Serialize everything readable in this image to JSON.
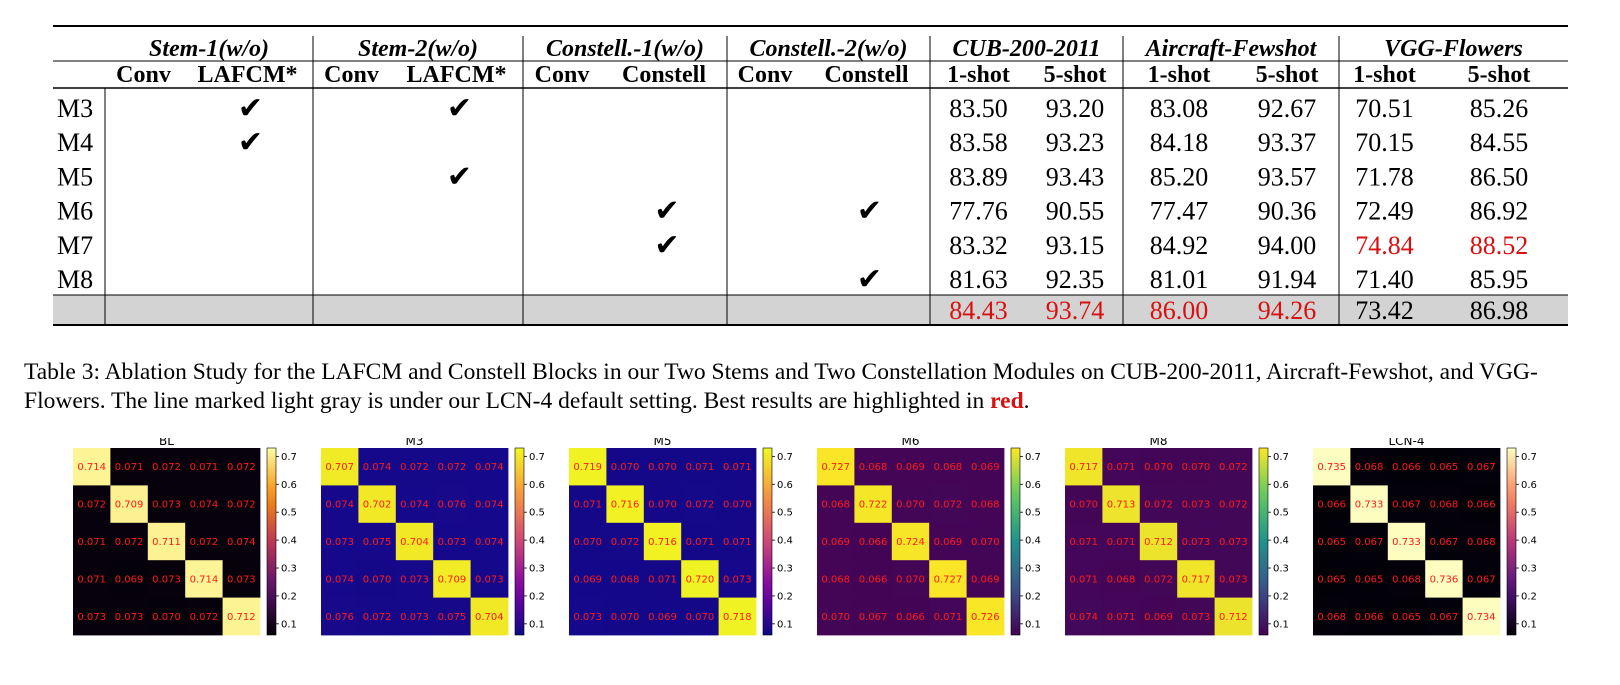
{
  "table": {
    "group_headers": [
      "Stem-1(w/o)",
      "Stem-2(w/o)",
      "Constell.-1(w/o)",
      "Constell.-2(w/o)",
      "CUB-200-2011",
      "Aircraft-Fewshot",
      "VGG-Flowers"
    ],
    "sub_headers": [
      "Conv",
      "LAFCM*",
      "Conv",
      "LAFCM*",
      "Conv",
      "Constell",
      "Conv",
      "Constell",
      "1-shot",
      "5-shot",
      "1-shot",
      "5-shot",
      "1-shot",
      "5-shot"
    ],
    "check_mark": "✔",
    "rows": [
      {
        "label": "M3",
        "checks": [
          1,
          3
        ],
        "values": [
          "83.50",
          "93.20",
          "83.08",
          "92.67",
          "70.51",
          "85.26"
        ],
        "red": []
      },
      {
        "label": "M4",
        "checks": [
          1
        ],
        "values": [
          "83.58",
          "93.23",
          "84.18",
          "93.37",
          "70.15",
          "84.55"
        ],
        "red": []
      },
      {
        "label": "M5",
        "checks": [
          3
        ],
        "values": [
          "83.89",
          "93.43",
          "85.20",
          "93.57",
          "71.78",
          "86.50"
        ],
        "red": []
      },
      {
        "label": "M6",
        "checks": [
          5,
          7
        ],
        "values": [
          "77.76",
          "90.55",
          "77.47",
          "90.36",
          "72.49",
          "86.92"
        ],
        "red": []
      },
      {
        "label": "M7",
        "checks": [
          5
        ],
        "values": [
          "83.32",
          "93.15",
          "84.92",
          "94.00",
          "74.84",
          "88.52"
        ],
        "red": [
          4,
          5
        ]
      },
      {
        "label": "M8",
        "checks": [
          7
        ],
        "values": [
          "81.63",
          "92.35",
          "81.01",
          "91.94",
          "71.40",
          "85.95"
        ],
        "red": []
      },
      {
        "label": "",
        "checks": [],
        "values": [
          "84.43",
          "93.74",
          "86.00",
          "94.26",
          "73.42",
          "86.98"
        ],
        "red": [
          0,
          1,
          2,
          3
        ],
        "highlight": true
      }
    ],
    "colors": {
      "red": "#d81010",
      "highlight_row": "#d3d3d3"
    }
  },
  "caption": {
    "text": "Table 3: Ablation Study for the LAFCM and Constell Blocks in our Two Stems and Two Constellation Modules on CUB-200-2011, Aircraft-Fewshot, and VGG-Flowers. The line marked light gray is under our LCN-4 default setting. Best results are highlighted in ",
    "best_word": "red",
    "end": "."
  },
  "chart_data": [
    {
      "type": "heatmap",
      "title": "BL",
      "colormap": "inferno",
      "colorbar_ticks": [
        "0.7",
        "0.6",
        "0.5",
        "0.4",
        "0.3",
        "0.2",
        "0.1"
      ],
      "vmin": 0.06,
      "vmax": 0.73,
      "values": [
        [
          "0.714",
          "0.071",
          "0.072",
          "0.071",
          "0.072"
        ],
        [
          "0.072",
          "0.709",
          "0.073",
          "0.074",
          "0.072"
        ],
        [
          "0.071",
          "0.072",
          "0.711",
          "0.072",
          "0.074"
        ],
        [
          "0.071",
          "0.069",
          "0.073",
          "0.714",
          "0.073"
        ],
        [
          "0.073",
          "0.073",
          "0.070",
          "0.072",
          "0.712"
        ]
      ]
    },
    {
      "type": "heatmap",
      "title": "M3",
      "colormap": "plasma",
      "colorbar_ticks": [
        "0.7",
        "0.6",
        "0.5",
        "0.4",
        "0.3",
        "0.2",
        "0.1"
      ],
      "vmin": 0.06,
      "vmax": 0.73,
      "values": [
        [
          "0.707",
          "0.074",
          "0.072",
          "0.072",
          "0.074"
        ],
        [
          "0.074",
          "0.702",
          "0.074",
          "0.076",
          "0.074"
        ],
        [
          "0.073",
          "0.075",
          "0.704",
          "0.073",
          "0.074"
        ],
        [
          "0.074",
          "0.070",
          "0.073",
          "0.709",
          "0.073"
        ],
        [
          "0.076",
          "0.072",
          "0.073",
          "0.075",
          "0.704"
        ]
      ]
    },
    {
      "type": "heatmap",
      "title": "M5",
      "colormap": "plasma",
      "colorbar_ticks": [
        "0.7",
        "0.6",
        "0.5",
        "0.4",
        "0.3",
        "0.2",
        "0.1"
      ],
      "vmin": 0.06,
      "vmax": 0.73,
      "values": [
        [
          "0.719",
          "0.070",
          "0.070",
          "0.071",
          "0.071"
        ],
        [
          "0.071",
          "0.716",
          "0.070",
          "0.072",
          "0.070"
        ],
        [
          "0.070",
          "0.072",
          "0.716",
          "0.071",
          "0.071"
        ],
        [
          "0.069",
          "0.068",
          "0.071",
          "0.720",
          "0.073"
        ],
        [
          "0.073",
          "0.070",
          "0.069",
          "0.070",
          "0.718"
        ]
      ]
    },
    {
      "type": "heatmap",
      "title": "M6",
      "colormap": "viridis",
      "colorbar_ticks": [
        "0.7",
        "0.6",
        "0.5",
        "0.4",
        "0.3",
        "0.2",
        "0.1"
      ],
      "vmin": 0.06,
      "vmax": 0.73,
      "values": [
        [
          "0.727",
          "0.068",
          "0.069",
          "0.068",
          "0.069"
        ],
        [
          "0.068",
          "0.722",
          "0.070",
          "0.072",
          "0.068"
        ],
        [
          "0.069",
          "0.066",
          "0.724",
          "0.069",
          "0.070"
        ],
        [
          "0.068",
          "0.066",
          "0.070",
          "0.727",
          "0.069"
        ],
        [
          "0.070",
          "0.067",
          "0.066",
          "0.071",
          "0.726"
        ]
      ]
    },
    {
      "type": "heatmap",
      "title": "M8",
      "colormap": "viridis",
      "colorbar_ticks": [
        "0.7",
        "0.6",
        "0.5",
        "0.4",
        "0.3",
        "0.2",
        "0.1"
      ],
      "vmin": 0.06,
      "vmax": 0.73,
      "values": [
        [
          "0.717",
          "0.071",
          "0.070",
          "0.070",
          "0.072"
        ],
        [
          "0.070",
          "0.713",
          "0.072",
          "0.073",
          "0.072"
        ],
        [
          "0.071",
          "0.071",
          "0.712",
          "0.073",
          "0.073"
        ],
        [
          "0.071",
          "0.068",
          "0.072",
          "0.717",
          "0.073"
        ],
        [
          "0.074",
          "0.071",
          "0.069",
          "0.073",
          "0.712"
        ]
      ]
    },
    {
      "type": "heatmap",
      "title": "LCN-4",
      "colormap": "magma",
      "colorbar_ticks": [
        "0.7",
        "0.6",
        "0.5",
        "0.4",
        "0.3",
        "0.2",
        "0.1"
      ],
      "vmin": 0.06,
      "vmax": 0.73,
      "values": [
        [
          "0.735",
          "0.068",
          "0.066",
          "0.065",
          "0.067"
        ],
        [
          "0.066",
          "0.733",
          "0.067",
          "0.068",
          "0.066"
        ],
        [
          "0.065",
          "0.067",
          "0.733",
          "0.067",
          "0.068"
        ],
        [
          "0.065",
          "0.065",
          "0.068",
          "0.736",
          "0.067"
        ],
        [
          "0.068",
          "0.066",
          "0.065",
          "0.067",
          "0.734"
        ]
      ]
    }
  ]
}
